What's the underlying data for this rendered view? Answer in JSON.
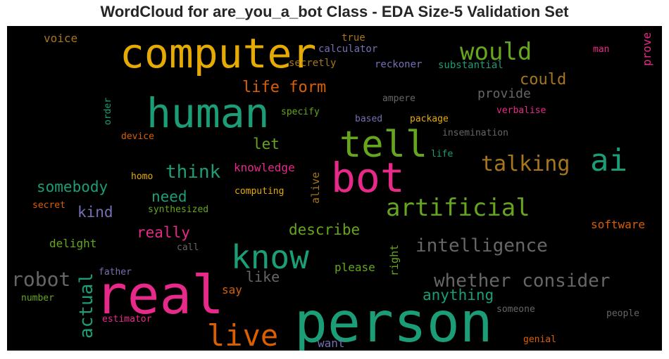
{
  "chart_data": {
    "type": "wordcloud",
    "title": "WordCloud for are_you_a_bot Class - EDA Size-5 Validation Set",
    "background": "#000000",
    "palette": "Dark2",
    "words": [
      {
        "text": "person",
        "color": "#1b9e77"
      },
      {
        "text": "real",
        "color": "#e7298a"
      },
      {
        "text": "computer",
        "color": "#e6ab02"
      },
      {
        "text": "human",
        "color": "#1b9e77"
      },
      {
        "text": "bot",
        "color": "#e7298a"
      },
      {
        "text": "tell",
        "color": "#66a61e"
      },
      {
        "text": "know",
        "color": "#1b9e77"
      },
      {
        "text": "ai",
        "color": "#1b9e77"
      },
      {
        "text": "live",
        "color": "#d95f02"
      },
      {
        "text": "artificial",
        "color": "#66a61e"
      },
      {
        "text": "would",
        "color": "#66a61e"
      },
      {
        "text": "talking",
        "color": "#a6761d"
      },
      {
        "text": "intelligence",
        "color": "#666666"
      },
      {
        "text": "whether consider",
        "color": "#666666"
      },
      {
        "text": "actual",
        "color": "#1b9e77"
      },
      {
        "text": "robot",
        "color": "#666666"
      },
      {
        "text": "think",
        "color": "#1b9e77"
      },
      {
        "text": "life form",
        "color": "#d95f02"
      },
      {
        "text": "could",
        "color": "#a6761d"
      },
      {
        "text": "somebody",
        "color": "#1b9e77"
      },
      {
        "text": "describe",
        "color": "#66a61e"
      },
      {
        "text": "anything",
        "color": "#1b9e77"
      },
      {
        "text": "really",
        "color": "#e7298a"
      },
      {
        "text": "kind",
        "color": "#7570b3"
      },
      {
        "text": "need",
        "color": "#1b9e77"
      },
      {
        "text": "let",
        "color": "#66a61e"
      },
      {
        "text": "like",
        "color": "#666666"
      },
      {
        "text": "provide",
        "color": "#666666"
      },
      {
        "text": "voice",
        "color": "#a6761d"
      },
      {
        "text": "knowledge",
        "color": "#e7298a"
      },
      {
        "text": "software",
        "color": "#d95f02"
      },
      {
        "text": "please",
        "color": "#66a61e"
      },
      {
        "text": "say",
        "color": "#d95f02"
      },
      {
        "text": "delight",
        "color": "#66a61e"
      },
      {
        "text": "want",
        "color": "#7570b3"
      },
      {
        "text": "prove",
        "color": "#e7298a"
      },
      {
        "text": "right",
        "color": "#66a61e"
      },
      {
        "text": "alive",
        "color": "#a6761d"
      },
      {
        "text": "calculator",
        "color": "#7570b3"
      },
      {
        "text": "substantial",
        "color": "#1b9e77"
      },
      {
        "text": "reckoner",
        "color": "#7570b3"
      },
      {
        "text": "secretly",
        "color": "#a6761d"
      },
      {
        "text": "true",
        "color": "#a6761d"
      },
      {
        "text": "man",
        "color": "#e7298a"
      },
      {
        "text": "ampere",
        "color": "#666666"
      },
      {
        "text": "verbalise",
        "color": "#e7298a"
      },
      {
        "text": "specify",
        "color": "#66a61e"
      },
      {
        "text": "based",
        "color": "#7570b3"
      },
      {
        "text": "package",
        "color": "#e6ab02"
      },
      {
        "text": "insemination",
        "color": "#666666"
      },
      {
        "text": "life",
        "color": "#1b9e77"
      },
      {
        "text": "device",
        "color": "#d95f02"
      },
      {
        "text": "order",
        "color": "#1b9e77"
      },
      {
        "text": "homo",
        "color": "#e6ab02"
      },
      {
        "text": "computing",
        "color": "#e6ab02"
      },
      {
        "text": "secret",
        "color": "#d95f02"
      },
      {
        "text": "synthesized",
        "color": "#66a61e"
      },
      {
        "text": "call",
        "color": "#666666"
      },
      {
        "text": "father",
        "color": "#7570b3"
      },
      {
        "text": "number",
        "color": "#66a61e"
      },
      {
        "text": "estimator",
        "color": "#e7298a"
      },
      {
        "text": "someone",
        "color": "#666666"
      },
      {
        "text": "people",
        "color": "#666666"
      },
      {
        "text": "genial",
        "color": "#d95f02"
      }
    ]
  }
}
